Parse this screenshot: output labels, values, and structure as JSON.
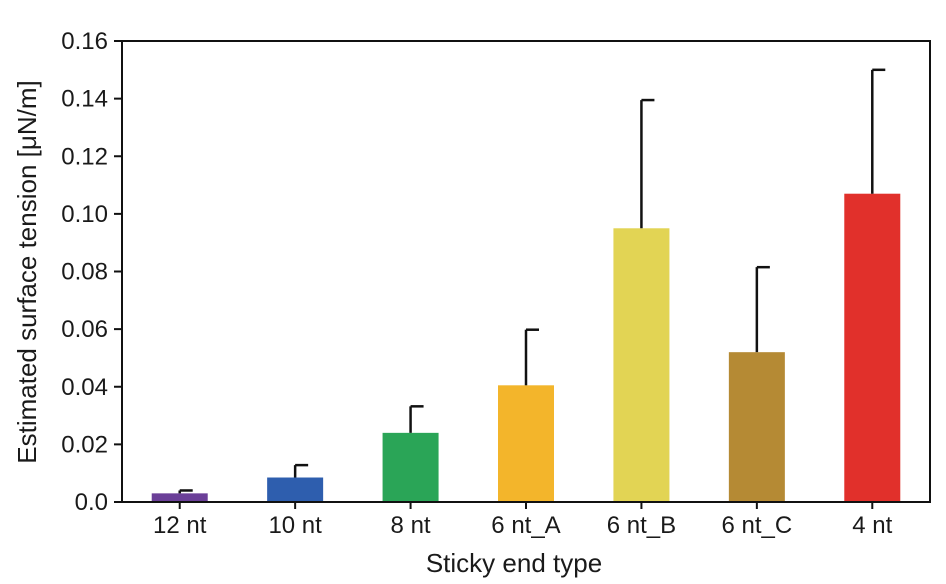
{
  "chart_data": {
    "type": "bar",
    "title": "",
    "xlabel": "Sticky end type",
    "ylabel": "Estimated surface tension [μN/m]",
    "ylim": [
      0,
      0.16
    ],
    "yticks": [
      0.0,
      0.02,
      0.04,
      0.06,
      0.08,
      0.1,
      0.12,
      0.14,
      0.16
    ],
    "ytick_labels": [
      "0.0",
      "0.02",
      "0.04",
      "0.06",
      "0.08",
      "0.10",
      "0.12",
      "0.14",
      "0.16"
    ],
    "grid": false,
    "legend": "none",
    "categories": [
      "12 nt",
      "10 nt",
      "8 nt",
      "6 nt_A",
      "6 nt_B",
      "6 nt_C",
      "4 nt"
    ],
    "values": [
      0.003,
      0.0085,
      0.024,
      0.0405,
      0.095,
      0.052,
      0.107
    ],
    "error_upper": [
      0.004,
      0.0128,
      0.0332,
      0.0598,
      0.1395,
      0.0815,
      0.15
    ],
    "colors": [
      "#6b3f98",
      "#2e5eae",
      "#2aa557",
      "#f3b52b",
      "#e2d454",
      "#b58a34",
      "#e1302b"
    ]
  }
}
